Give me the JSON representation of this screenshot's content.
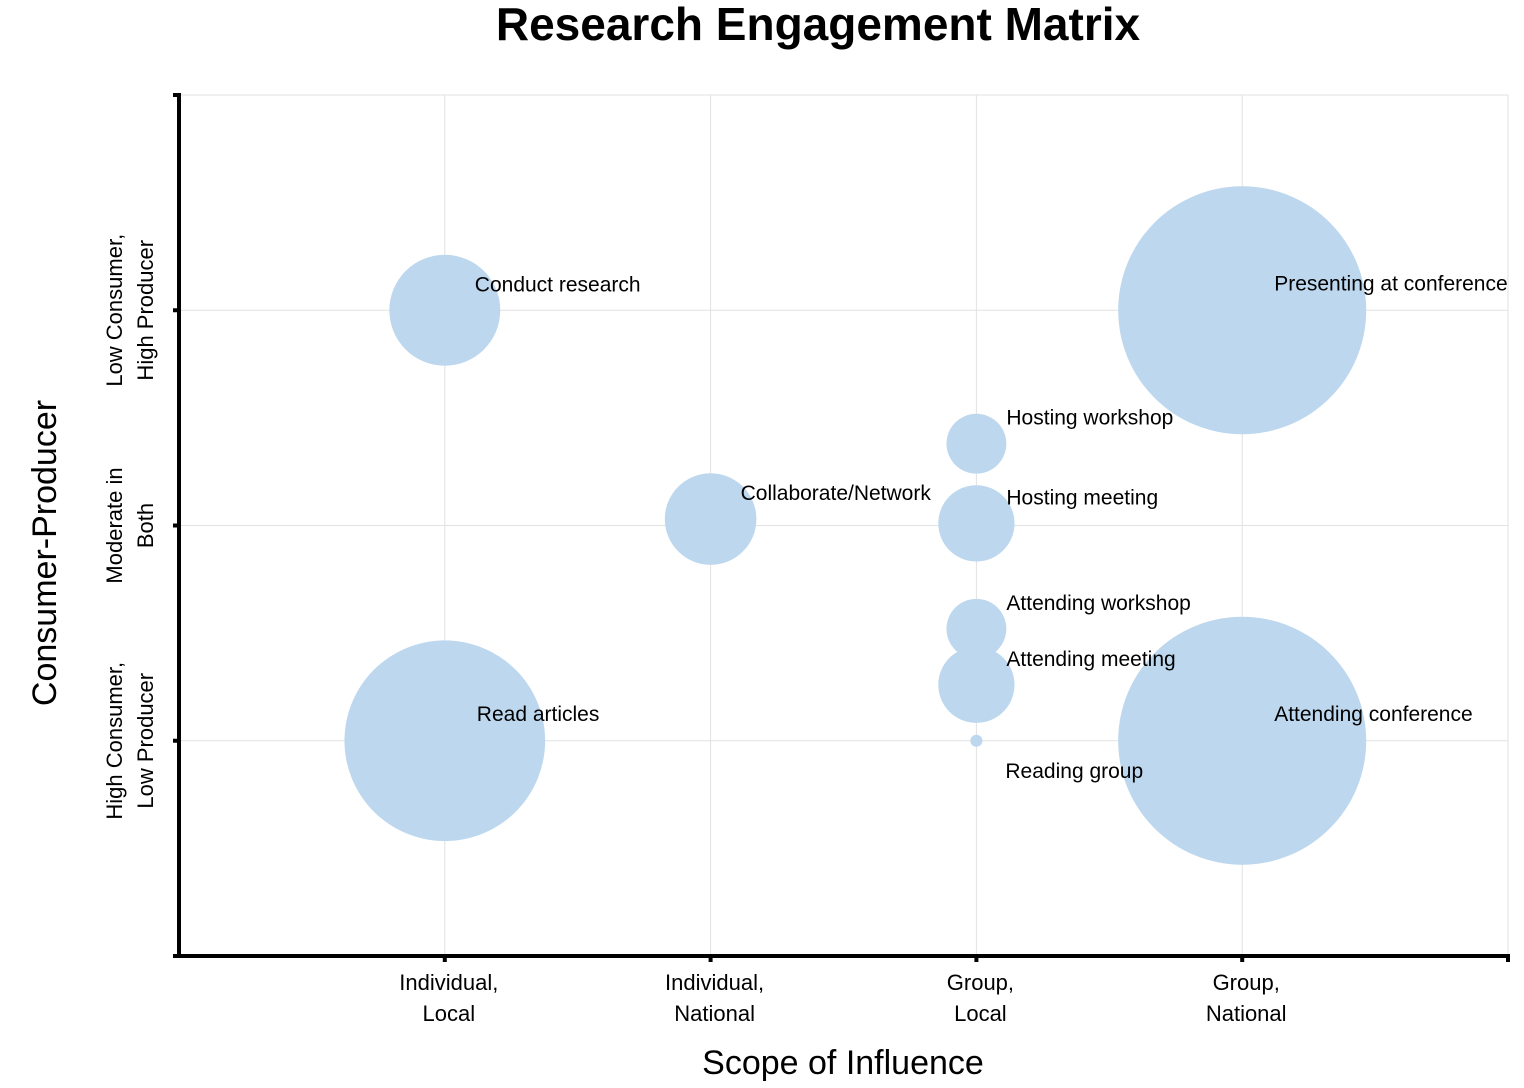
{
  "chart_data": {
    "type": "bubble",
    "title": "Research Engagement Matrix",
    "xlabel": "Scope of Influence",
    "ylabel": "Consumer-Producer",
    "xlim": [
      0,
      5
    ],
    "ylim": [
      0,
      4
    ],
    "x_ticks": [
      {
        "value": 1,
        "lines": [
          "Individual,",
          "Local"
        ]
      },
      {
        "value": 2,
        "lines": [
          "Individual,",
          "National"
        ]
      },
      {
        "value": 3,
        "lines": [
          "Group,",
          "Local"
        ]
      },
      {
        "value": 4,
        "lines": [
          "Group,",
          "National"
        ]
      }
    ],
    "y_ticks": [
      {
        "value": 1,
        "lines": [
          "High Consumer,",
          "Low Producer"
        ]
      },
      {
        "value": 2,
        "lines": [
          "Moderate in",
          "Both"
        ]
      },
      {
        "value": 3,
        "lines": [
          "Low Consumer,",
          "High Producer"
        ]
      }
    ],
    "grid": true,
    "bubble_color": "#bdd7ee",
    "points": [
      {
        "label": "Conduct research",
        "x": 1,
        "y": 3,
        "size": 11
      },
      {
        "label": "Presenting at conference",
        "x": 4,
        "y": 3,
        "size": 55
      },
      {
        "label": "Hosting workshop",
        "x": 3,
        "y": 2.38,
        "size": 3.2
      },
      {
        "label": "Collaborate/Network",
        "x": 2,
        "y": 2.03,
        "size": 7.5
      },
      {
        "label": "Hosting meeting",
        "x": 3,
        "y": 2.01,
        "size": 5.2
      },
      {
        "label": "Attending workshop",
        "x": 3,
        "y": 1.52,
        "size": 3.2
      },
      {
        "label": "Attending meeting",
        "x": 3,
        "y": 1.26,
        "size": 5.2
      },
      {
        "label": "Read articles",
        "x": 1,
        "y": 1,
        "size": 36
      },
      {
        "label": "Attending conference",
        "x": 4,
        "y": 1,
        "size": 55
      },
      {
        "label": "Reading group",
        "x": 3,
        "y": 1,
        "size": 0.1
      }
    ]
  }
}
